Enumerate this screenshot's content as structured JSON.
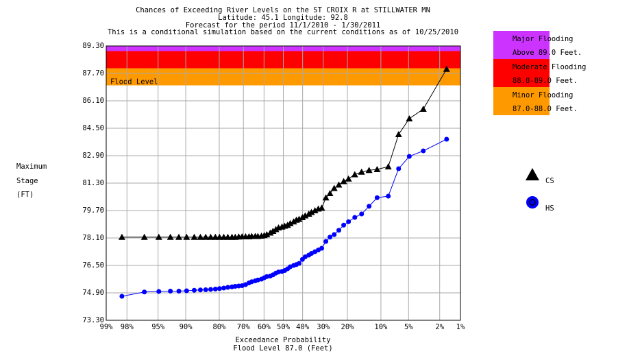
{
  "chart_data": {
    "type": "line",
    "title": "Chances of Exceeding River Levels on the ST CROIX R at STILLWATER MN",
    "subtitles": [
      "Latitude: 45.1      Longitude:  92.8",
      "Forecast for the period 11/1/2010 - 1/30/2011",
      "This is a conditional simulation based on the current conditions as of 10/25/2010"
    ],
    "ylabel": [
      "Maximum",
      "Stage",
      "(FT)"
    ],
    "xlabel": "Exceedance Probability",
    "xsubcaption": "Flood Level 87.0 (Feet)",
    "annotation": "Flood Level",
    "xscale": "probability",
    "grid": true,
    "xlim": [
      99,
      1
    ],
    "xticks": [
      {
        "value": 99,
        "label": "99%"
      },
      {
        "value": 98,
        "label": "98%"
      },
      {
        "value": 95,
        "label": "95%"
      },
      {
        "value": 90,
        "label": "90%"
      },
      {
        "value": 80,
        "label": "80%"
      },
      {
        "value": 70,
        "label": "70%"
      },
      {
        "value": 60,
        "label": "60%"
      },
      {
        "value": 50,
        "label": "50%"
      },
      {
        "value": 40,
        "label": "40%"
      },
      {
        "value": 30,
        "label": "30%"
      },
      {
        "value": 20,
        "label": "20%"
      },
      {
        "value": 10,
        "label": "10%"
      },
      {
        "value": 5,
        "label": "5%"
      },
      {
        "value": 2,
        "label": "2%"
      },
      {
        "value": 1,
        "label": "1%"
      }
    ],
    "ylim": [
      73.3,
      89.3
    ],
    "yticks": [
      {
        "value": 73.3,
        "label": "73.30"
      },
      {
        "value": 74.9,
        "label": "74.90"
      },
      {
        "value": 76.5,
        "label": "76.50"
      },
      {
        "value": 78.1,
        "label": "78.10"
      },
      {
        "value": 79.7,
        "label": "79.70"
      },
      {
        "value": 81.3,
        "label": "81.30"
      },
      {
        "value": 82.9,
        "label": "82.90"
      },
      {
        "value": 84.5,
        "label": "84.50"
      },
      {
        "value": 86.1,
        "label": "86.10"
      },
      {
        "value": 87.7,
        "label": "87.70"
      },
      {
        "value": 89.3,
        "label": "89.30"
      }
    ],
    "flood_categories": [
      {
        "label": "Major Flooding",
        "range_label": "Above 89.0 Feet.",
        "color": "#cc33ff",
        "lower": 89.0
      },
      {
        "label": "Moderate Flooding",
        "range_label": "88.0-89.0 Feet.",
        "color": "#ff0000",
        "lower": 88.0,
        "upper": 89.0
      },
      {
        "label": "Minor Flooding",
        "range_label": "87.0-88.0 Feet.",
        "color": "#ff9900",
        "lower": 87.0,
        "upper": 88.0
      }
    ],
    "x": [
      98.3,
      96.6,
      94.9,
      93.1,
      91.5,
      89.8,
      87.9,
      86.2,
      84.6,
      83.0,
      81.4,
      79.9,
      78.3,
      76.7,
      75.0,
      73.6,
      72.1,
      70.6,
      69.0,
      67.4,
      66.1,
      64.4,
      63.1,
      61.3,
      59.9,
      58.6,
      56.8,
      55.4,
      53.9,
      52.5,
      50.7,
      49.3,
      47.8,
      46.4,
      44.6,
      43.2,
      41.8,
      40.1,
      38.7,
      36.9,
      35.6,
      33.9,
      32.3,
      30.7,
      28.8,
      27.0,
      25.2,
      23.3,
      21.4,
      19.6,
      17.4,
      15.2,
      13.0,
      10.9,
      8.4,
      6.5,
      4.9,
      3.3,
      1.6
    ],
    "series": [
      {
        "name": "CS",
        "color": "#000000",
        "marker": "triangle",
        "values": [
          78.15,
          78.15,
          78.15,
          78.15,
          78.15,
          78.15,
          78.15,
          78.15,
          78.15,
          78.15,
          78.15,
          78.15,
          78.15,
          78.15,
          78.15,
          78.15,
          78.17,
          78.18,
          78.18,
          78.18,
          78.2,
          78.2,
          78.2,
          78.22,
          78.25,
          78.3,
          78.4,
          78.5,
          78.6,
          78.7,
          78.75,
          78.8,
          78.85,
          78.95,
          79.05,
          79.15,
          79.2,
          79.3,
          79.4,
          79.5,
          79.6,
          79.7,
          79.8,
          79.85,
          80.45,
          80.7,
          81.0,
          81.2,
          81.4,
          81.55,
          81.8,
          81.95,
          82.05,
          82.1,
          82.26,
          84.14,
          85.06,
          85.62,
          87.95
        ]
      },
      {
        "name": "HS",
        "color": "#0000ff",
        "marker": "circle",
        "values": [
          74.7,
          74.95,
          74.98,
          75.0,
          75.0,
          75.02,
          75.05,
          75.07,
          75.08,
          75.1,
          75.12,
          75.15,
          75.18,
          75.22,
          75.25,
          75.28,
          75.3,
          75.32,
          75.38,
          75.48,
          75.55,
          75.6,
          75.65,
          75.7,
          75.78,
          75.85,
          75.88,
          75.95,
          76.05,
          76.12,
          76.15,
          76.2,
          76.3,
          76.42,
          76.5,
          76.55,
          76.62,
          76.85,
          77.0,
          77.1,
          77.2,
          77.3,
          77.4,
          77.5,
          77.9,
          78.15,
          78.3,
          78.55,
          78.85,
          79.05,
          79.3,
          79.5,
          79.95,
          80.45,
          80.54,
          82.14,
          82.86,
          83.18,
          83.86
        ]
      }
    ]
  }
}
